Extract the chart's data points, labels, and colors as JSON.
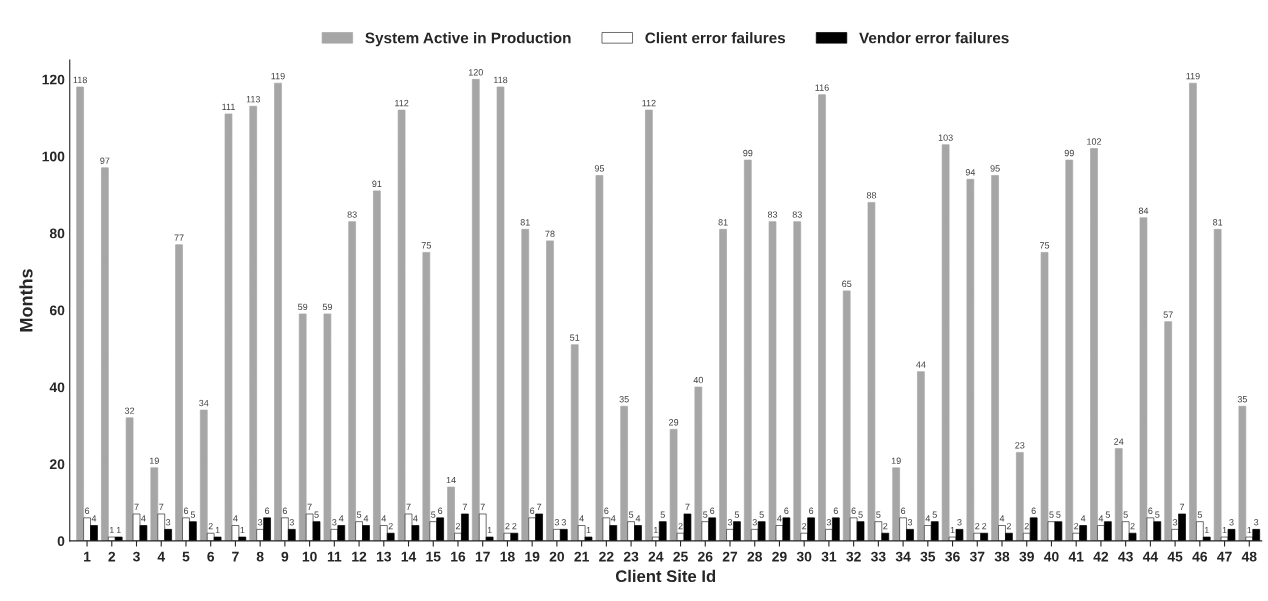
{
  "chart_data": {
    "type": "bar",
    "xlabel": "Client Site Id",
    "ylabel": "Months",
    "categories": [
      "1",
      "2",
      "3",
      "4",
      "5",
      "6",
      "7",
      "8",
      "9",
      "10",
      "11",
      "12",
      "13",
      "14",
      "15",
      "16",
      "17",
      "18",
      "19",
      "20",
      "21",
      "22",
      "23",
      "24",
      "25",
      "26",
      "27",
      "28",
      "29",
      "30",
      "31",
      "32",
      "33",
      "34",
      "35",
      "36",
      "37",
      "38",
      "39",
      "40",
      "41",
      "42",
      "43",
      "44",
      "45",
      "46",
      "47",
      "48"
    ],
    "series": [
      {
        "name": "System Active in Production",
        "color": "#a6a6a6",
        "values": [
          118,
          97,
          32,
          19,
          77,
          34,
          111,
          113,
          119,
          59,
          59,
          83,
          91,
          112,
          75,
          14,
          120,
          118,
          81,
          78,
          51,
          95,
          35,
          112,
          29,
          40,
          81,
          99,
          83,
          83,
          116,
          65,
          88,
          19,
          44,
          103,
          94,
          95,
          23,
          75,
          99,
          102,
          24,
          84,
          57,
          119,
          81,
          35
        ]
      },
      {
        "name": "Client error failures",
        "color": "#ffffff",
        "values": [
          6,
          1,
          7,
          7,
          6,
          2,
          4,
          3,
          6,
          7,
          3,
          5,
          4,
          7,
          5,
          2,
          7,
          2,
          6,
          3,
          4,
          6,
          5,
          1,
          2,
          5,
          3,
          3,
          4,
          2,
          3,
          6,
          5,
          6,
          4,
          1,
          2,
          4,
          2,
          5,
          2,
          4,
          5,
          6,
          3,
          5,
          1,
          1
        ]
      },
      {
        "name": "Vendor error failures",
        "color": "#000000",
        "values": [
          4,
          1,
          4,
          3,
          5,
          1,
          1,
          6,
          3,
          5,
          4,
          4,
          2,
          4,
          6,
          7,
          1,
          2,
          7,
          3,
          1,
          4,
          4,
          5,
          7,
          6,
          5,
          5,
          6,
          6,
          6,
          5,
          2,
          3,
          5,
          3,
          2,
          2,
          6,
          5,
          4,
          5,
          2,
          5,
          7,
          1,
          3,
          3
        ]
      }
    ],
    "ylim": [
      0,
      125
    ],
    "yticks": [
      0,
      20,
      40,
      60,
      80,
      100,
      120
    ],
    "data_labels": true,
    "legend": "top",
    "grid": false
  }
}
